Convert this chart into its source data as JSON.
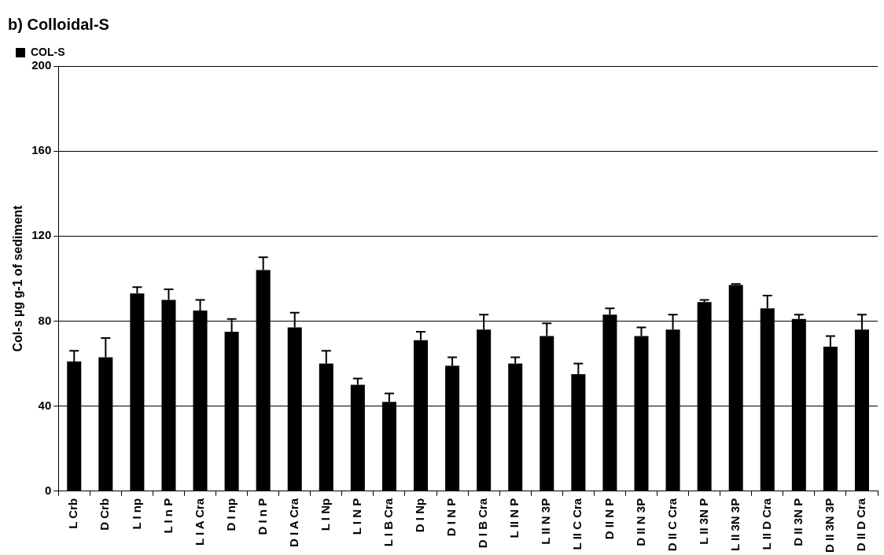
{
  "chart_data": {
    "type": "bar",
    "title": "b) Colloidal-S",
    "ylabel": "Col-s µg g-1 of sediment",
    "categories": [
      "L Crb",
      "D Crb",
      "L I np",
      "L I n P",
      "L I A Cra",
      "D I np",
      "D I n P",
      "D I A Cra",
      "L I Np",
      "L I N P",
      "L I B Cra",
      "D I Np",
      "D I N P",
      "D I B Cra",
      "L II N P",
      "L II N 3P",
      "L II C Cra",
      "D II N P",
      "D II N 3P",
      "D II C Cra",
      "L II 3N P",
      "L II 3N 3P",
      "L II D Cra",
      "D II 3N P",
      "D II 3N 3P",
      "D II D Cra"
    ],
    "series": [
      {
        "name": "COL-S",
        "color": "#000000",
        "values": [
          61,
          63,
          93,
          90,
          85,
          75,
          104,
          77,
          60,
          50,
          42,
          71,
          59,
          76,
          60,
          73,
          55,
          83,
          73,
          76,
          89,
          97,
          86,
          81,
          68,
          76
        ],
        "errors": [
          [
            61,
            66
          ],
          [
            63,
            72
          ],
          [
            93,
            96
          ],
          [
            90,
            95
          ],
          [
            85,
            90
          ],
          [
            75,
            81
          ],
          [
            104,
            110
          ],
          [
            77,
            84
          ],
          [
            60,
            66
          ],
          [
            50,
            53
          ],
          [
            42,
            46
          ],
          [
            71,
            75
          ],
          [
            59,
            63
          ],
          [
            76,
            83
          ],
          [
            60,
            63
          ],
          [
            73,
            79
          ],
          [
            55,
            60
          ],
          [
            83,
            86
          ],
          [
            73,
            77
          ],
          [
            76,
            83
          ],
          [
            89,
            90
          ],
          [
            97,
            97.5
          ],
          [
            86,
            92
          ],
          [
            81,
            83
          ],
          [
            68,
            73
          ],
          [
            76,
            83
          ]
        ]
      }
    ],
    "ylim": [
      0,
      200
    ],
    "yticks": [
      0,
      40,
      80,
      120,
      160,
      200
    ],
    "grid": "y",
    "legend": "top left"
  }
}
